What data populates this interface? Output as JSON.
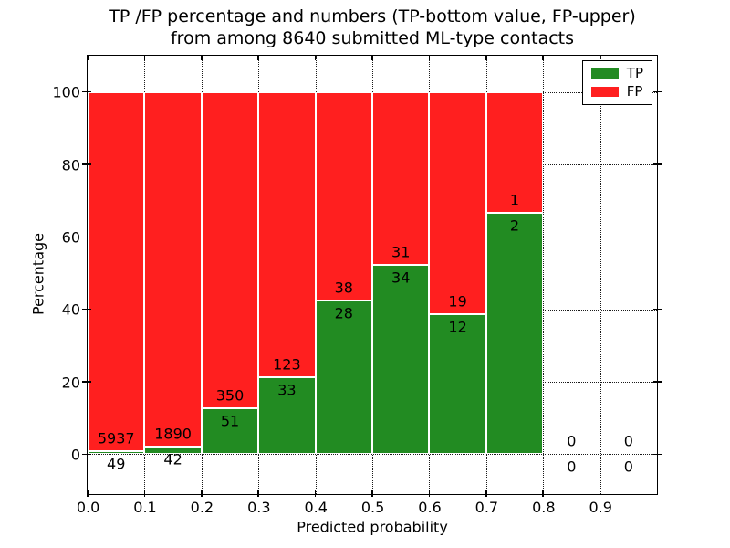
{
  "title": {
    "line1": "TP /FP percentage and numbers (TP-bottom value, FP-upper)",
    "line2": "from among 8640 submitted ML-type contacts"
  },
  "axes": {
    "ylabel": "Percentage",
    "xlabel": "Predicted probability"
  },
  "legend": {
    "items": [
      {
        "label": "TP",
        "color": "#228b22"
      },
      {
        "label": "FP",
        "color": "#ff1f1f"
      }
    ]
  },
  "colors": {
    "tp_green": "#228b22",
    "fp_red": "#ff1f1f",
    "grid": "#1a1a1a",
    "bar_edge": "#ffffff"
  },
  "chart_data": {
    "type": "bar",
    "subtype": "stacked-percentage-histogram",
    "title": "TP /FP percentage and numbers (TP-bottom value, FP-upper) from among 8640 submitted ML-type contacts",
    "xlabel": "Predicted probability",
    "ylabel": "Percentage",
    "total_contacts": 8640,
    "bin_edges": [
      0.0,
      0.1,
      0.2,
      0.3,
      0.4,
      0.5,
      0.6,
      0.7,
      0.8,
      0.9,
      1.0
    ],
    "series": [
      {
        "name": "TP",
        "color": "#228b22",
        "counts": [
          49,
          42,
          51,
          33,
          28,
          34,
          12,
          2,
          0,
          0
        ]
      },
      {
        "name": "FP",
        "color": "#ff1f1f",
        "counts": [
          5937,
          1890,
          350,
          123,
          38,
          31,
          19,
          1,
          0,
          0
        ]
      }
    ],
    "bar_labels_fp": [
      "5937",
      "1890",
      "350",
      "123",
      "38",
      "31",
      "19",
      "1",
      "0",
      "0"
    ],
    "bar_labels_tp": [
      "49",
      "42",
      "51",
      "33",
      "28",
      "34",
      "12",
      "2",
      "0",
      "0"
    ],
    "tp_percent_of_bin": [
      0.82,
      2.17,
      12.72,
      21.15,
      42.42,
      52.31,
      38.71,
      66.67,
      0,
      0
    ],
    "yticks": [
      0,
      20,
      40,
      60,
      80,
      100
    ],
    "xtick_labels": [
      "0.0",
      "0.1",
      "0.2",
      "0.3",
      "0.4",
      "0.5",
      "0.6",
      "0.7",
      "0.8",
      "0.9"
    ],
    "xtick_values": [
      0.0,
      0.1,
      0.2,
      0.3,
      0.4,
      0.5,
      0.6,
      0.7,
      0.8,
      0.9
    ],
    "ylim": [
      -11,
      110
    ],
    "xlim": [
      0.0,
      1.0
    ],
    "grid": true,
    "legend_position": "upper right"
  }
}
